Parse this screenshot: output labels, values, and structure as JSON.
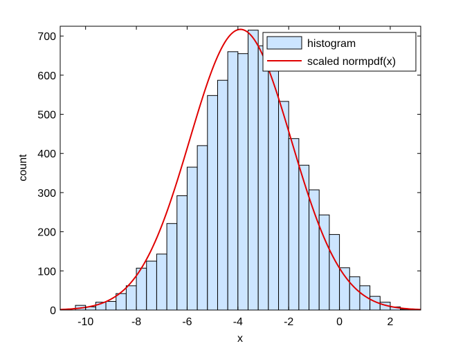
{
  "chart_data": {
    "type": "bar",
    "xlabel": "x",
    "ylabel": "count",
    "xlim": [
      -11,
      3.2
    ],
    "ylim": [
      0,
      725
    ],
    "xticks": [
      -10,
      -8,
      -6,
      -4,
      -2,
      0,
      2
    ],
    "yticks": [
      0,
      100,
      200,
      300,
      400,
      500,
      600,
      700
    ],
    "grid": false,
    "legend": {
      "placement": "top-right",
      "entries": [
        "histogram",
        "scaled normpdf(x)"
      ]
    },
    "colors": {
      "bar_fill": "#cce5ff",
      "bar_edge": "#000000",
      "curve": "#e00000"
    },
    "series": [
      {
        "name": "histogram",
        "type": "bar",
        "bin_edges": [
          -10.4,
          -10.0,
          -9.6,
          -9.2,
          -8.8,
          -8.4,
          -8.0,
          -7.6,
          -7.2,
          -6.8,
          -6.4,
          -6.0,
          -5.6,
          -5.2,
          -4.8,
          -4.4,
          -4.0,
          -3.6,
          -3.2,
          -2.8,
          -2.4,
          -2.0,
          -1.6,
          -1.2,
          -0.8,
          -0.4,
          0.0,
          0.4,
          0.8,
          1.2,
          1.6,
          2.0,
          2.4,
          2.8
        ],
        "values": [
          12,
          8,
          20,
          22,
          42,
          62,
          107,
          125,
          143,
          221,
          292,
          365,
          420,
          548,
          587,
          660,
          655,
          715,
          675,
          650,
          533,
          438,
          370,
          307,
          243,
          193,
          108,
          85,
          62,
          35,
          20,
          8,
          2
        ]
      },
      {
        "name": "scaled normpdf(x)",
        "type": "line",
        "mean": -3.9,
        "sd": 2.0,
        "peak": 717
      }
    ]
  }
}
